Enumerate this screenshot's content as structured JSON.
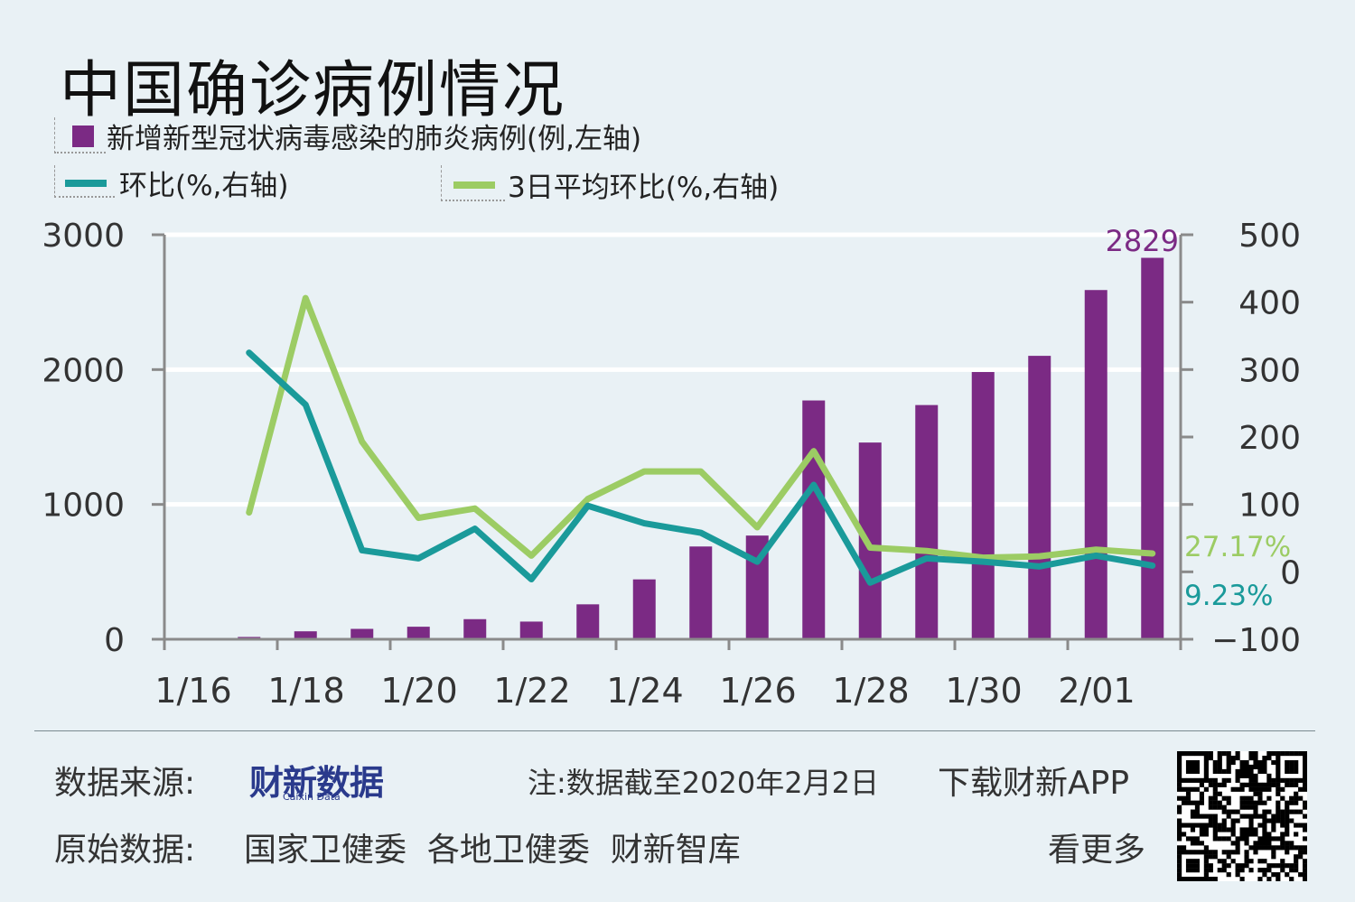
{
  "title": "中国确诊病例情况",
  "legend": {
    "bar": "新增新型冠状病毒感染的肺炎病例(例,左轴)",
    "line1": "环比(%,右轴)",
    "line2": "3日平均环比(%,右轴)"
  },
  "colors": {
    "bar": "#7b2a84",
    "line1": "#1a9a9a",
    "line2": "#9ccc64",
    "background": "#e9f1f5",
    "grid": "#ffffff",
    "axis": "#8a8a8a"
  },
  "annotations": {
    "last_bar": "2829",
    "line2_last": "27.17%",
    "line1_last": "9.23%"
  },
  "footer": {
    "source_label": "数据来源:",
    "source_logo": "财新数据",
    "source_logo_sub": "Caixin Data",
    "note": "注:数据截至2020年2月2日",
    "raw_label": "原始数据:",
    "raw_sources": "国家卫健委  各地卫健委  财新智库",
    "app_line1": "下载财新APP",
    "app_line2": "看更多"
  },
  "chart_data": {
    "type": "bar+line",
    "title": "中国确诊病例情况",
    "categories": [
      "1/17",
      "1/18",
      "1/19",
      "1/20",
      "1/21",
      "1/22",
      "1/23",
      "1/24",
      "1/25",
      "1/26",
      "1/27",
      "1/28",
      "1/29",
      "1/30",
      "1/31",
      "2/01",
      "2/02"
    ],
    "x_tick_labels": [
      "1/16",
      "1/18",
      "1/20",
      "1/22",
      "1/24",
      "1/26",
      "1/28",
      "1/30",
      "2/01"
    ],
    "left_axis": {
      "label": "例",
      "ticks": [
        0,
        1000,
        2000,
        3000
      ],
      "ylim": [
        0,
        3000
      ]
    },
    "right_axis": {
      "label": "%",
      "ticks": [
        -100,
        0,
        100,
        200,
        300,
        400,
        500
      ],
      "ylim": [
        -100,
        500
      ]
    },
    "series": [
      {
        "name": "新增新型冠状病毒感染的肺炎病例(例,左轴)",
        "type": "bar",
        "axis": "left",
        "values": [
          17,
          59,
          77,
          93,
          149,
          131,
          259,
          444,
          688,
          769,
          1771,
          1459,
          1737,
          1982,
          2102,
          2590,
          2829
        ]
      },
      {
        "name": "环比(%,右轴)",
        "type": "line",
        "axis": "right",
        "values": [
          325,
          248,
          32,
          20,
          64,
          -11,
          98,
          72,
          58,
          15,
          129,
          -16,
          20,
          15,
          8,
          24,
          9.23
        ]
      },
      {
        "name": "3日平均环比(%,右轴)",
        "type": "line",
        "axis": "right",
        "values": [
          88,
          406,
          193,
          80,
          94,
          24,
          108,
          149,
          149,
          66,
          179,
          36,
          31,
          21,
          23,
          33,
          27.17
        ]
      }
    ],
    "grid": true,
    "legend_position": "top-left"
  }
}
